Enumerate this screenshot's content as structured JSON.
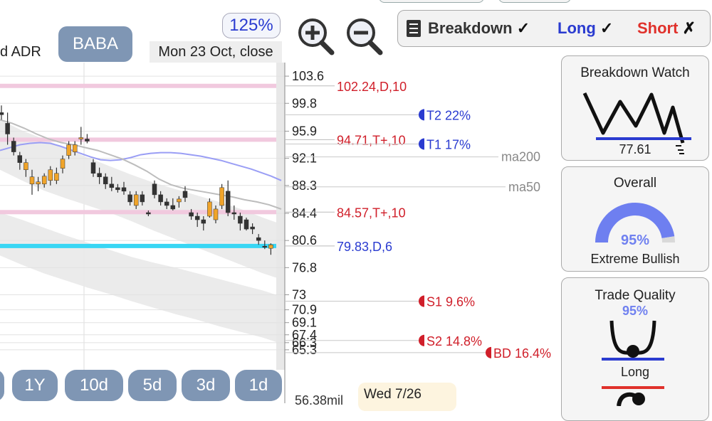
{
  "symbol": "BABA",
  "name_fragment": "d ADR",
  "zoom": "125%",
  "date_label": "Mon 23 Oct, close",
  "legend": {
    "breakdown": "Breakdown",
    "long": "Long",
    "short": "Short",
    "check": "✓",
    "cross": "✗"
  },
  "timeframes": [
    "1Y",
    "10d",
    "5d",
    "3d",
    "1d"
  ],
  "tooltip": "Wed 7/26",
  "volume_label": "56.38mil",
  "panels": {
    "breakdown_watch": {
      "title": "Breakdown Watch",
      "value": "77.61"
    },
    "overall": {
      "title": "Overall",
      "percent": "95%",
      "percent_value": 0.95,
      "label": "Extreme Bullish"
    },
    "trade_quality": {
      "title": "Trade Quality",
      "percent": "95%",
      "label": "Long"
    }
  },
  "chart_data": {
    "type": "candlestick",
    "ylim": [
      62.5,
      105.5
    ],
    "y_ticks": [
      "103.6",
      "99.8",
      "95.9",
      "92.1",
      "88.3",
      "84.4",
      "80.6",
      "76.8",
      "73",
      "70.9",
      "69.1",
      "67.4",
      "66.3",
      "65.3"
    ],
    "levels": [
      {
        "label": "102.24,D,10",
        "value": 102.24,
        "color": "#d01f2a"
      },
      {
        "label": "94.71,T+,10",
        "value": 94.71,
        "color": "#d01f2a"
      },
      {
        "label": "84.57,T+,10",
        "value": 84.57,
        "color": "#d01f2a"
      },
      {
        "label": "79.83,D,6",
        "value": 79.83,
        "color": "#2a3bd0"
      }
    ],
    "targets": [
      {
        "label": "T2 22%",
        "value": 98.2,
        "color": "#2a3bd0"
      },
      {
        "label": "T1 17%",
        "value": 94.1,
        "color": "#2a3bd0"
      },
      {
        "label": "S1 9.6%",
        "value": 72.1,
        "color": "#d01f2a"
      },
      {
        "label": "S2 14.8%",
        "value": 66.6,
        "color": "#d01f2a"
      },
      {
        "label": "BD 16.4%",
        "value": 64.9,
        "color": "#d01f2a"
      }
    ],
    "ma_labels": [
      {
        "label": "ma200",
        "value": 92.3
      },
      {
        "label": "ma50",
        "value": 88.1
      }
    ],
    "candles": [
      {
        "o": 98.5,
        "h": 99.5,
        "l": 97.5,
        "c": 98.2
      },
      {
        "o": 97.0,
        "h": 98.5,
        "l": 94.0,
        "c": 95.5
      },
      {
        "o": 94.5,
        "h": 95.0,
        "l": 92.5,
        "c": 93.0
      },
      {
        "o": 92.5,
        "h": 93.0,
        "l": 90.5,
        "c": 91.5
      },
      {
        "o": 90.5,
        "h": 92.0,
        "l": 89.5,
        "c": 91.5
      },
      {
        "o": 88.5,
        "h": 90.5,
        "l": 87.0,
        "c": 89.5
      },
      {
        "o": 88.5,
        "h": 89.5,
        "l": 87.5,
        "c": 88.8
      },
      {
        "o": 88.5,
        "h": 90.0,
        "l": 88.0,
        "c": 89.6
      },
      {
        "o": 89.0,
        "h": 91.0,
        "l": 88.3,
        "c": 90.5
      },
      {
        "o": 89.0,
        "h": 90.8,
        "l": 88.5,
        "c": 90.0
      },
      {
        "o": 90.7,
        "h": 92.5,
        "l": 90.0,
        "c": 92.0
      },
      {
        "o": 92.5,
        "h": 94.5,
        "l": 92.0,
        "c": 94.0
      },
      {
        "o": 93.0,
        "h": 94.5,
        "l": 92.5,
        "c": 94.0
      },
      {
        "o": 94.8,
        "h": 96.5,
        "l": 94.0,
        "c": 95.0
      },
      {
        "o": 94.8,
        "h": 95.5,
        "l": 94.2,
        "c": 94.5
      },
      {
        "o": 91.5,
        "h": 92.0,
        "l": 89.5,
        "c": 90.0
      },
      {
        "o": 90.0,
        "h": 90.8,
        "l": 88.5,
        "c": 89.5
      },
      {
        "o": 89.5,
        "h": 90.0,
        "l": 87.8,
        "c": 88.5
      },
      {
        "o": 88.5,
        "h": 89.5,
        "l": 87.5,
        "c": 88.0
      },
      {
        "o": 88.0,
        "h": 88.5,
        "l": 87.3,
        "c": 87.7
      },
      {
        "o": 88.0,
        "h": 88.8,
        "l": 87.0,
        "c": 87.5
      },
      {
        "o": 87.0,
        "h": 87.5,
        "l": 85.5,
        "c": 86.0
      },
      {
        "o": 85.5,
        "h": 87.5,
        "l": 85.0,
        "c": 87.0
      },
      {
        "o": 87.0,
        "h": 87.5,
        "l": 85.5,
        "c": 86.0
      },
      {
        "o": 84.5,
        "h": 84.8,
        "l": 84.0,
        "c": 84.3
      },
      {
        "o": 88.5,
        "h": 89.0,
        "l": 86.5,
        "c": 87.0
      },
      {
        "o": 87.0,
        "h": 87.5,
        "l": 85.5,
        "c": 86.0
      },
      {
        "o": 86.0,
        "h": 86.5,
        "l": 85.0,
        "c": 85.5
      },
      {
        "o": 85.5,
        "h": 86.5,
        "l": 84.8,
        "c": 85.0
      },
      {
        "o": 86.0,
        "h": 86.8,
        "l": 85.2,
        "c": 86.4
      },
      {
        "o": 87.5,
        "h": 88.2,
        "l": 86.0,
        "c": 86.6
      },
      {
        "o": 84.5,
        "h": 85.0,
        "l": 83.5,
        "c": 84.0
      },
      {
        "o": 84.0,
        "h": 84.5,
        "l": 82.5,
        "c": 83.5
      },
      {
        "o": 83.5,
        "h": 84.0,
        "l": 82.0,
        "c": 83.0
      },
      {
        "o": 84.0,
        "h": 86.5,
        "l": 83.8,
        "c": 86.0
      },
      {
        "o": 83.5,
        "h": 85.5,
        "l": 83.0,
        "c": 85.0
      },
      {
        "o": 85.5,
        "h": 88.5,
        "l": 85.0,
        "c": 88.0
      },
      {
        "o": 87.5,
        "h": 89.0,
        "l": 84.0,
        "c": 84.5
      },
      {
        "o": 84.5,
        "h": 85.5,
        "l": 83.5,
        "c": 84.3
      },
      {
        "o": 84.0,
        "h": 84.5,
        "l": 82.0,
        "c": 83.0
      },
      {
        "o": 83.5,
        "h": 83.8,
        "l": 82.0,
        "c": 82.2
      },
      {
        "o": 82.5,
        "h": 83.0,
        "l": 81.5,
        "c": 82.2
      },
      {
        "o": 81.0,
        "h": 81.5,
        "l": 80.0,
        "c": 80.6
      },
      {
        "o": 79.8,
        "h": 80.6,
        "l": 79.4,
        "c": 79.7
      },
      {
        "o": 79.5,
        "h": 80.2,
        "l": 78.6,
        "c": 80.0
      }
    ],
    "ma200": [
      93.2,
      93.6,
      94.0,
      94.2,
      94.3,
      94.2,
      93.8,
      93.3,
      92.8,
      92.3,
      91.9,
      91.8,
      91.9,
      92.2,
      92.6,
      92.8,
      92.9,
      92.9,
      92.8,
      92.6,
      92.4,
      92.1,
      91.8,
      91.4,
      91.0,
      90.6,
      90.1,
      89.6,
      89.0
    ],
    "ma50": [
      97.5,
      97.0,
      96.3,
      95.5,
      94.8,
      94.3,
      94.0,
      93.6,
      93.2,
      92.6,
      92.0,
      91.2,
      90.3,
      89.2,
      88.4,
      87.9,
      87.6,
      87.3,
      87.0,
      86.7,
      86.3,
      86.0,
      85.6,
      85.0
    ],
    "bands": [
      {
        "top": [
          97.5,
          96.0,
          94.8,
          93.5,
          92.2,
          91.0,
          89.8,
          88.7,
          87.8,
          86.9,
          86.0,
          85.0,
          83.8,
          82.7
        ],
        "bot": [
          90.5,
          89.0,
          87.6,
          86.5,
          85.5,
          84.5,
          83.3,
          82.0,
          80.8,
          79.6,
          78.4,
          77.2,
          76.0,
          75.0
        ]
      },
      {
        "top": [
          84.5,
          83.5,
          82.4,
          81.3,
          80.3,
          79.3,
          78.3,
          77.5,
          76.8,
          76.0,
          75.2,
          74.4,
          73.6,
          72.6
        ],
        "bot": [
          78.5,
          77.2,
          76.0,
          75.0,
          74.0,
          73.1,
          72.1,
          71.2,
          70.3,
          69.5,
          68.6,
          67.8,
          67.0,
          66.0
        ]
      }
    ]
  }
}
